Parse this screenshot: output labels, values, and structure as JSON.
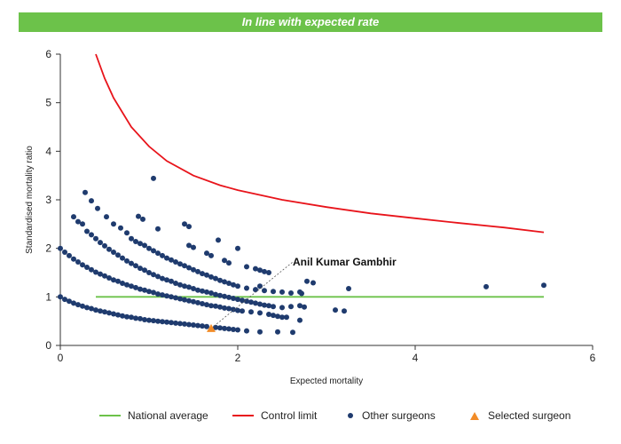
{
  "banner": "In line with expected rate",
  "chart_data": {
    "type": "scatter",
    "title": "",
    "xlabel": "Expected mortality",
    "ylabel": "Standardised mortality ratio",
    "xlim": [
      0,
      6
    ],
    "ylim": [
      0,
      6
    ],
    "xticks": [
      0,
      2,
      4,
      6
    ],
    "yticks": [
      0,
      1,
      2,
      3,
      4,
      5,
      6
    ],
    "grid": false,
    "legend_position": "bottom",
    "series": [
      {
        "name": "National average",
        "kind": "line",
        "color": "#6cc24a",
        "points": [
          [
            0.4,
            1
          ],
          [
            5.45,
            1
          ]
        ]
      },
      {
        "name": "Control limit",
        "kind": "line",
        "color": "#e8141b",
        "points": [
          [
            0.4,
            6.0
          ],
          [
            0.5,
            5.5
          ],
          [
            0.6,
            5.1
          ],
          [
            0.7,
            4.8
          ],
          [
            0.8,
            4.5
          ],
          [
            1.0,
            4.1
          ],
          [
            1.2,
            3.8
          ],
          [
            1.5,
            3.5
          ],
          [
            1.8,
            3.3
          ],
          [
            2.0,
            3.2
          ],
          [
            2.5,
            3.0
          ],
          [
            3.0,
            2.85
          ],
          [
            3.5,
            2.72
          ],
          [
            4.0,
            2.62
          ],
          [
            4.5,
            2.52
          ],
          [
            5.0,
            2.43
          ],
          [
            5.45,
            2.33
          ]
        ]
      },
      {
        "name": "Other surgeons",
        "kind": "scatter",
        "color": "#1f3b6e",
        "points": [
          [
            0.0,
            1.0
          ],
          [
            0.05,
            0.95
          ],
          [
            0.1,
            0.91
          ],
          [
            0.15,
            0.87
          ],
          [
            0.2,
            0.84
          ],
          [
            0.25,
            0.81
          ],
          [
            0.3,
            0.78
          ],
          [
            0.35,
            0.76
          ],
          [
            0.4,
            0.73
          ],
          [
            0.45,
            0.71
          ],
          [
            0.5,
            0.69
          ],
          [
            0.55,
            0.67
          ],
          [
            0.6,
            0.65
          ],
          [
            0.65,
            0.63
          ],
          [
            0.7,
            0.61
          ],
          [
            0.75,
            0.59
          ],
          [
            0.8,
            0.58
          ],
          [
            0.85,
            0.56
          ],
          [
            0.9,
            0.55
          ],
          [
            0.95,
            0.53
          ],
          [
            1.0,
            0.52
          ],
          [
            1.05,
            0.51
          ],
          [
            1.1,
            0.5
          ],
          [
            1.15,
            0.49
          ],
          [
            1.2,
            0.48
          ],
          [
            1.25,
            0.47
          ],
          [
            1.3,
            0.46
          ],
          [
            1.35,
            0.45
          ],
          [
            1.4,
            0.44
          ],
          [
            1.45,
            0.43
          ],
          [
            1.5,
            0.42
          ],
          [
            1.55,
            0.41
          ],
          [
            1.6,
            0.4
          ],
          [
            1.65,
            0.39
          ],
          [
            1.75,
            0.37
          ],
          [
            1.8,
            0.36
          ],
          [
            1.85,
            0.35
          ],
          [
            1.9,
            0.34
          ],
          [
            1.95,
            0.33
          ],
          [
            2.0,
            0.32
          ],
          [
            2.1,
            0.3
          ],
          [
            2.25,
            0.28
          ],
          [
            2.45,
            0.28
          ],
          [
            2.62,
            0.27
          ],
          [
            0.0,
            2.0
          ],
          [
            0.05,
            1.92
          ],
          [
            0.1,
            1.85
          ],
          [
            0.15,
            1.78
          ],
          [
            0.2,
            1.72
          ],
          [
            0.25,
            1.66
          ],
          [
            0.3,
            1.61
          ],
          [
            0.35,
            1.56
          ],
          [
            0.4,
            1.51
          ],
          [
            0.45,
            1.47
          ],
          [
            0.5,
            1.43
          ],
          [
            0.55,
            1.39
          ],
          [
            0.6,
            1.35
          ],
          [
            0.65,
            1.32
          ],
          [
            0.7,
            1.28
          ],
          [
            0.75,
            1.25
          ],
          [
            0.8,
            1.22
          ],
          [
            0.85,
            1.19
          ],
          [
            0.9,
            1.16
          ],
          [
            0.95,
            1.14
          ],
          [
            1.0,
            1.11
          ],
          [
            1.05,
            1.09
          ],
          [
            1.1,
            1.06
          ],
          [
            1.15,
            1.04
          ],
          [
            1.2,
            1.02
          ],
          [
            1.25,
            1.0
          ],
          [
            1.3,
            0.98
          ],
          [
            1.35,
            0.96
          ],
          [
            1.4,
            0.94
          ],
          [
            1.45,
            0.92
          ],
          [
            1.5,
            0.9
          ],
          [
            1.55,
            0.88
          ],
          [
            1.6,
            0.86
          ],
          [
            1.65,
            0.84
          ],
          [
            1.7,
            0.82
          ],
          [
            1.75,
            0.81
          ],
          [
            1.8,
            0.79
          ],
          [
            1.85,
            0.77
          ],
          [
            1.9,
            0.76
          ],
          [
            1.95,
            0.74
          ],
          [
            2.0,
            0.72
          ],
          [
            2.05,
            0.71
          ],
          [
            2.15,
            0.69
          ],
          [
            2.25,
            0.67
          ],
          [
            2.35,
            0.64
          ],
          [
            2.4,
            0.62
          ],
          [
            2.45,
            0.6
          ],
          [
            2.5,
            0.58
          ],
          [
            2.55,
            0.58
          ],
          [
            2.7,
            0.52
          ],
          [
            0.15,
            2.65
          ],
          [
            0.2,
            2.55
          ],
          [
            0.25,
            2.5
          ],
          [
            0.3,
            2.35
          ],
          [
            0.35,
            2.28
          ],
          [
            0.4,
            2.2
          ],
          [
            0.45,
            2.12
          ],
          [
            0.5,
            2.05
          ],
          [
            0.55,
            1.98
          ],
          [
            0.6,
            1.92
          ],
          [
            0.65,
            1.86
          ],
          [
            0.7,
            1.8
          ],
          [
            0.75,
            1.74
          ],
          [
            0.8,
            1.69
          ],
          [
            0.85,
            1.64
          ],
          [
            0.9,
            1.59
          ],
          [
            0.95,
            1.55
          ],
          [
            1.0,
            1.5
          ],
          [
            1.05,
            1.46
          ],
          [
            1.1,
            1.42
          ],
          [
            1.15,
            1.38
          ],
          [
            1.2,
            1.35
          ],
          [
            1.25,
            1.32
          ],
          [
            1.3,
            1.28
          ],
          [
            1.35,
            1.25
          ],
          [
            1.4,
            1.22
          ],
          [
            1.45,
            1.2
          ],
          [
            1.5,
            1.17
          ],
          [
            1.55,
            1.14
          ],
          [
            1.6,
            1.12
          ],
          [
            1.65,
            1.1
          ],
          [
            1.7,
            1.08
          ],
          [
            1.75,
            1.05
          ],
          [
            1.8,
            1.03
          ],
          [
            1.85,
            1.01
          ],
          [
            1.9,
            0.99
          ],
          [
            1.95,
            0.97
          ],
          [
            2.0,
            0.95
          ],
          [
            2.05,
            0.93
          ],
          [
            2.1,
            0.91
          ],
          [
            2.15,
            0.89
          ],
          [
            2.2,
            0.87
          ],
          [
            2.25,
            0.85
          ],
          [
            2.3,
            0.83
          ],
          [
            2.35,
            0.82
          ],
          [
            2.4,
            0.8
          ],
          [
            2.5,
            0.78
          ],
          [
            2.6,
            0.8
          ],
          [
            2.7,
            0.82
          ],
          [
            2.75,
            0.79
          ],
          [
            3.1,
            0.73
          ],
          [
            3.2,
            0.71
          ],
          [
            0.28,
            3.15
          ],
          [
            0.35,
            2.98
          ],
          [
            0.42,
            2.82
          ],
          [
            0.52,
            2.65
          ],
          [
            0.6,
            2.5
          ],
          [
            0.68,
            2.42
          ],
          [
            0.75,
            2.32
          ],
          [
            0.8,
            2.2
          ],
          [
            0.85,
            2.14
          ],
          [
            0.9,
            2.1
          ],
          [
            0.95,
            2.06
          ],
          [
            1.0,
            2.0
          ],
          [
            1.05,
            1.95
          ],
          [
            1.1,
            1.9
          ],
          [
            1.15,
            1.85
          ],
          [
            1.2,
            1.8
          ],
          [
            1.25,
            1.76
          ],
          [
            1.3,
            1.72
          ],
          [
            1.35,
            1.68
          ],
          [
            1.4,
            1.64
          ],
          [
            1.45,
            1.6
          ],
          [
            1.5,
            1.56
          ],
          [
            1.55,
            1.52
          ],
          [
            1.6,
            1.48
          ],
          [
            1.65,
            1.45
          ],
          [
            1.7,
            1.41
          ],
          [
            1.75,
            1.38
          ],
          [
            1.8,
            1.34
          ],
          [
            1.85,
            1.31
          ],
          [
            1.9,
            1.28
          ],
          [
            1.95,
            1.25
          ],
          [
            2.0,
            1.22
          ],
          [
            2.1,
            1.18
          ],
          [
            2.2,
            1.15
          ],
          [
            2.3,
            1.13
          ],
          [
            2.4,
            1.11
          ],
          [
            2.5,
            1.1
          ],
          [
            2.6,
            1.08
          ],
          [
            2.7,
            1.1
          ],
          [
            2.72,
            1.07
          ],
          [
            2.78,
            1.32
          ],
          [
            2.85,
            1.29
          ],
          [
            3.25,
            1.17
          ],
          [
            0.88,
            2.66
          ],
          [
            0.93,
            2.6
          ],
          [
            1.05,
            3.44
          ],
          [
            1.1,
            2.4
          ],
          [
            1.4,
            2.5
          ],
          [
            1.45,
            2.45
          ],
          [
            1.45,
            2.06
          ],
          [
            1.5,
            2.02
          ],
          [
            1.65,
            1.9
          ],
          [
            1.7,
            1.85
          ],
          [
            1.78,
            2.17
          ],
          [
            1.85,
            1.75
          ],
          [
            1.9,
            1.7
          ],
          [
            2.0,
            2.0
          ],
          [
            2.1,
            1.62
          ],
          [
            2.2,
            1.58
          ],
          [
            2.25,
            1.55
          ],
          [
            2.3,
            1.52
          ],
          [
            2.35,
            1.5
          ],
          [
            2.25,
            1.22
          ],
          [
            4.8,
            1.21
          ],
          [
            5.45,
            1.24
          ]
        ]
      },
      {
        "name": "Selected surgeon",
        "kind": "scatter",
        "marker": "triangle",
        "color": "#f28c28",
        "points": [
          [
            1.7,
            0.35
          ]
        ],
        "label": "Anil Kumar Gambhir"
      }
    ]
  }
}
